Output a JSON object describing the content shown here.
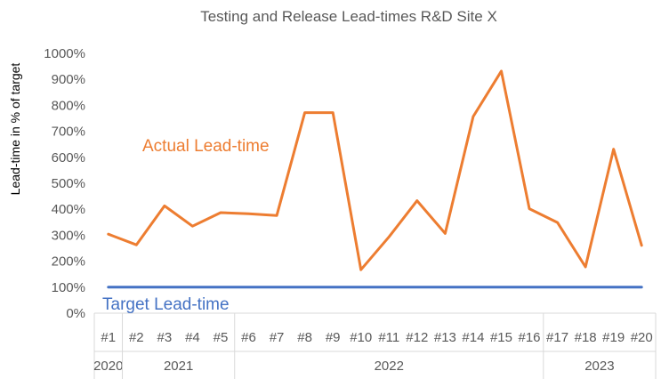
{
  "chart_data": {
    "type": "line",
    "title": "Testing and Release Lead-times R&D Site X",
    "ylabel": "Lead-time in % of target",
    "xlabel": "",
    "ylim": [
      0,
      1000
    ],
    "ytick_step": 100,
    "ytick_suffix": "%",
    "grid": false,
    "legend": "none",
    "categories": [
      "#1",
      "#2",
      "#3",
      "#4",
      "#5",
      "#6",
      "#7",
      "#8",
      "#9",
      "#10",
      "#11",
      "#12",
      "#13",
      "#14",
      "#15",
      "#16",
      "#17",
      "#18",
      "#19",
      "#20"
    ],
    "year_groups": [
      {
        "label": "2020",
        "count": 1
      },
      {
        "label": "2021",
        "count": 4
      },
      {
        "label": "2022",
        "count": 11
      },
      {
        "label": "2023",
        "count": 4
      }
    ],
    "series": [
      {
        "name": "Actual Lead-time",
        "color": "#ed7d31",
        "values": [
          304,
          263,
          413,
          335,
          387,
          383,
          376,
          772,
          772,
          167,
          294,
          433,
          307,
          757,
          932,
          402,
          349,
          178,
          631,
          261
        ]
      },
      {
        "name": "Target Lead-time",
        "color": "#4472c4",
        "values": [
          100,
          100,
          100,
          100,
          100,
          100,
          100,
          100,
          100,
          100,
          100,
          100,
          100,
          100,
          100,
          100,
          100,
          100,
          100,
          100
        ]
      }
    ]
  }
}
